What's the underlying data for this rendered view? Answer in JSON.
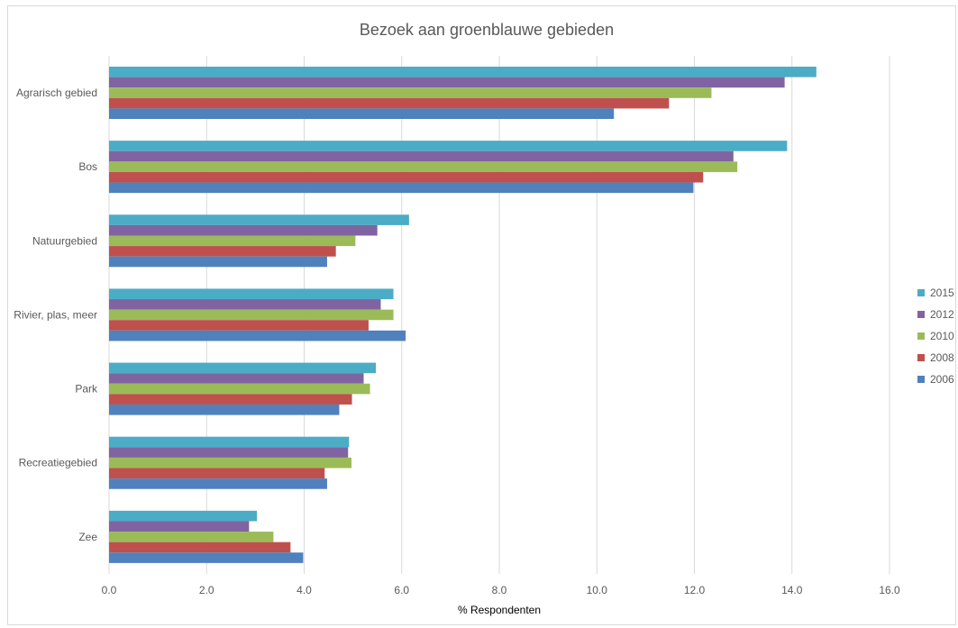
{
  "chart_data": {
    "type": "bar",
    "orientation": "horizontal",
    "title": "Bezoek aan groenblauwe gebieden",
    "xlabel": "% Respondenten",
    "ylabel": "",
    "xlim": [
      0,
      16
    ],
    "xticks": [
      "0.0",
      "2.0",
      "4.0",
      "6.0",
      "8.0",
      "10.0",
      "12.0",
      "14.0",
      "16.0"
    ],
    "grid": "vertical",
    "legend_position": "right",
    "categories": [
      "Agrarisch gebied",
      "Bos",
      "Natuurgebied",
      "Rivier, plas, meer",
      "Park",
      "Recreatiegebied",
      "Zee"
    ],
    "series": [
      {
        "name": "2015",
        "color": "#4bacc6",
        "values": [
          14.5,
          13.9,
          6.15,
          5.83,
          5.47,
          4.92,
          3.03
        ]
      },
      {
        "name": "2012",
        "color": "#8064a2",
        "values": [
          13.85,
          12.8,
          5.5,
          5.57,
          5.22,
          4.9,
          2.87
        ]
      },
      {
        "name": "2010",
        "color": "#9bbb59",
        "values": [
          12.35,
          12.88,
          5.05,
          5.83,
          5.35,
          4.97,
          3.37
        ]
      },
      {
        "name": "2008",
        "color": "#c0504d",
        "values": [
          11.48,
          12.18,
          4.65,
          5.32,
          4.98,
          4.42,
          3.72
        ]
      },
      {
        "name": "2006",
        "color": "#4f81bd",
        "values": [
          10.35,
          11.98,
          4.47,
          6.08,
          4.72,
          4.47,
          3.98
        ]
      }
    ]
  }
}
